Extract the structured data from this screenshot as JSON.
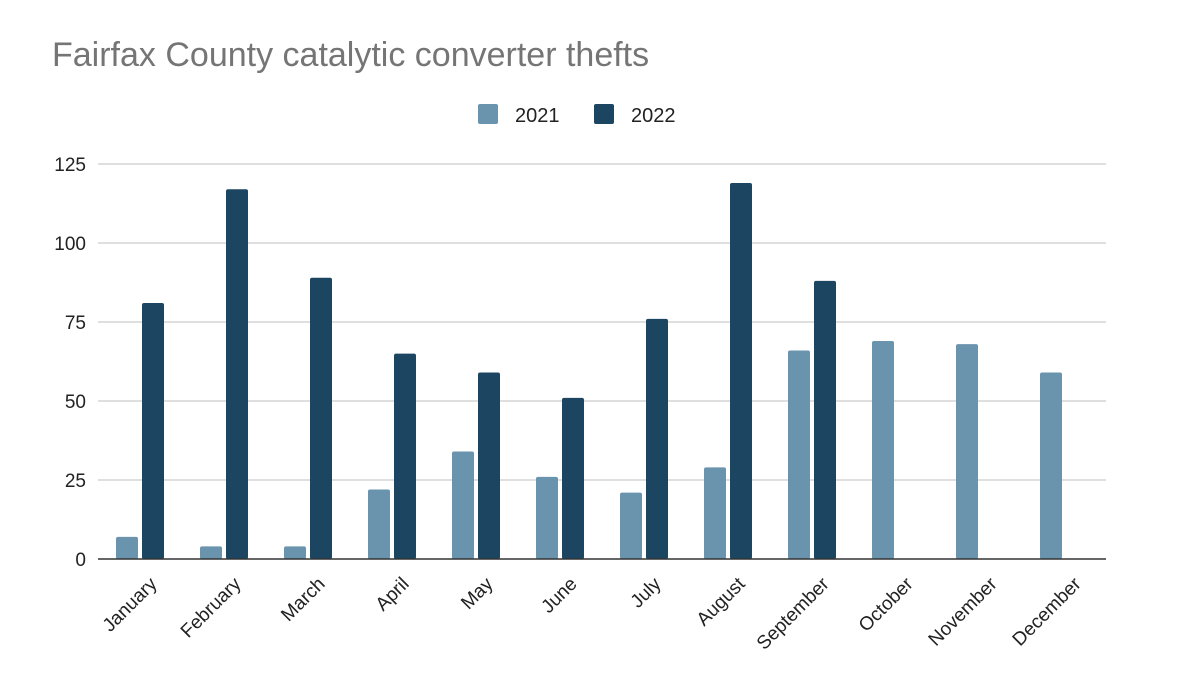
{
  "chart_data": {
    "type": "bar",
    "title": "Fairfax County catalytic converter thefts",
    "xlabel": "",
    "ylabel": "",
    "categories": [
      "January",
      "February",
      "March",
      "April",
      "May",
      "June",
      "July",
      "August",
      "September",
      "October",
      "November",
      "December"
    ],
    "series": [
      {
        "name": "2021",
        "color": "#6a93ad",
        "values": [
          7,
          4,
          4,
          22,
          34,
          26,
          21,
          29,
          66,
          69,
          68,
          59
        ]
      },
      {
        "name": "2022",
        "color": "#1c4561",
        "values": [
          81,
          117,
          89,
          65,
          59,
          51,
          76,
          119,
          88,
          null,
          null,
          null
        ]
      }
    ],
    "yticks": [
      "0",
      "25",
      "50",
      "75",
      "100",
      "125"
    ],
    "ylim": [
      0,
      125
    ],
    "grid": true,
    "legend": "top-center"
  }
}
